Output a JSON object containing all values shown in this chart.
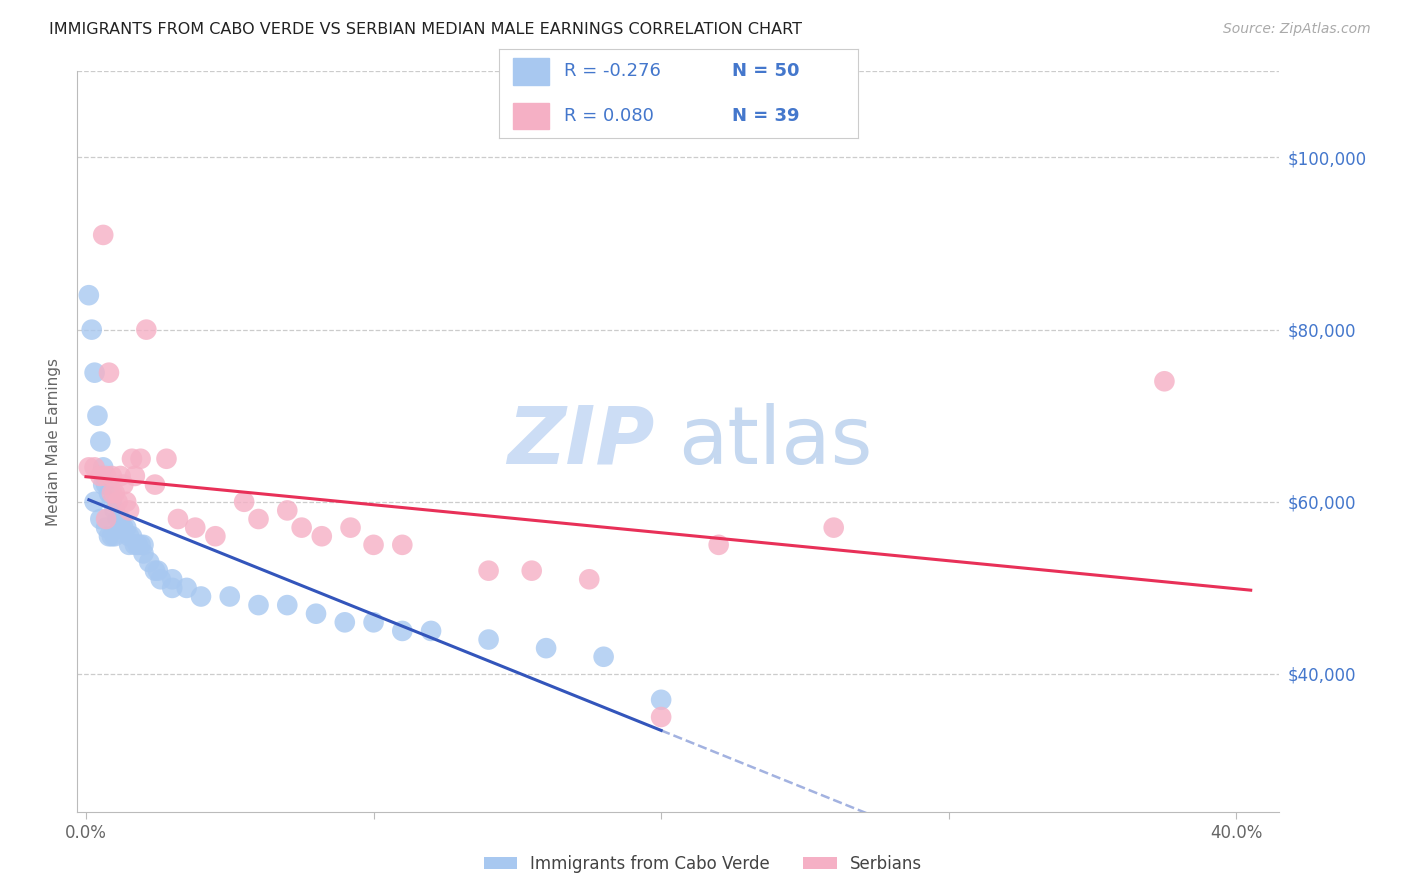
{
  "title": "IMMIGRANTS FROM CABO VERDE VS SERBIAN MEDIAN MALE EARNINGS CORRELATION CHART",
  "source": "Source: ZipAtlas.com",
  "ylabel": "Median Male Earnings",
  "yticks": [
    40000,
    60000,
    80000,
    100000
  ],
  "xlim": [
    -0.003,
    0.415
  ],
  "ylim": [
    24000,
    110000
  ],
  "cabo_verde_R": -0.276,
  "cabo_verde_N": 50,
  "serbian_R": 0.08,
  "serbian_N": 39,
  "cabo_verde_color": "#a8c8f0",
  "serbian_color": "#f5b0c5",
  "cabo_verde_line_color": "#3355bb",
  "serbian_line_color": "#e83058",
  "background_color": "#ffffff",
  "grid_color": "#cccccc",
  "right_axis_color": "#4477cc",
  "watermark_zip_color": "#dce8f8",
  "watermark_atlas_color": "#c8ddf5",
  "cabo_verde_x": [
    0.001,
    0.002,
    0.003,
    0.004,
    0.005,
    0.006,
    0.007,
    0.008,
    0.009,
    0.01,
    0.011,
    0.012,
    0.013,
    0.014,
    0.015,
    0.016,
    0.017,
    0.018,
    0.019,
    0.02,
    0.022,
    0.024,
    0.026,
    0.03,
    0.035,
    0.04,
    0.05,
    0.06,
    0.07,
    0.08,
    0.09,
    0.1,
    0.11,
    0.12,
    0.14,
    0.16,
    0.18,
    0.2,
    0.003,
    0.005,
    0.007,
    0.009,
    0.012,
    0.015,
    0.02,
    0.025,
    0.03,
    0.01,
    0.008,
    0.006
  ],
  "cabo_verde_y": [
    84000,
    80000,
    75000,
    70000,
    67000,
    64000,
    62000,
    61000,
    60000,
    59000,
    58000,
    58000,
    57000,
    57000,
    56000,
    56000,
    55000,
    55000,
    55000,
    54000,
    53000,
    52000,
    51000,
    50000,
    50000,
    49000,
    49000,
    48000,
    48000,
    47000,
    46000,
    46000,
    45000,
    45000,
    44000,
    43000,
    42000,
    37000,
    60000,
    58000,
    57000,
    56000,
    57000,
    55000,
    55000,
    52000,
    51000,
    56000,
    56000,
    62000
  ],
  "serbian_x": [
    0.001,
    0.003,
    0.005,
    0.006,
    0.007,
    0.008,
    0.009,
    0.01,
    0.011,
    0.012,
    0.013,
    0.014,
    0.015,
    0.016,
    0.017,
    0.019,
    0.021,
    0.024,
    0.028,
    0.032,
    0.038,
    0.045,
    0.055,
    0.06,
    0.07,
    0.075,
    0.082,
    0.092,
    0.1,
    0.11,
    0.14,
    0.155,
    0.175,
    0.2,
    0.22,
    0.26,
    0.375,
    0.007,
    0.009
  ],
  "serbian_y": [
    64000,
    64000,
    63000,
    91000,
    63000,
    75000,
    63000,
    61000,
    60000,
    63000,
    62000,
    60000,
    59000,
    65000,
    63000,
    65000,
    80000,
    62000,
    65000,
    58000,
    57000,
    56000,
    60000,
    58000,
    59000,
    57000,
    56000,
    57000,
    55000,
    55000,
    52000,
    52000,
    51000,
    35000,
    55000,
    57000,
    74000,
    58000,
    61000
  ],
  "cabo_line_x_start": 0.001,
  "cabo_line_x_solid_end": 0.2,
  "cabo_line_x_dashed_end": 0.405,
  "serbian_line_x_start": 0.0,
  "serbian_line_x_end": 0.405
}
